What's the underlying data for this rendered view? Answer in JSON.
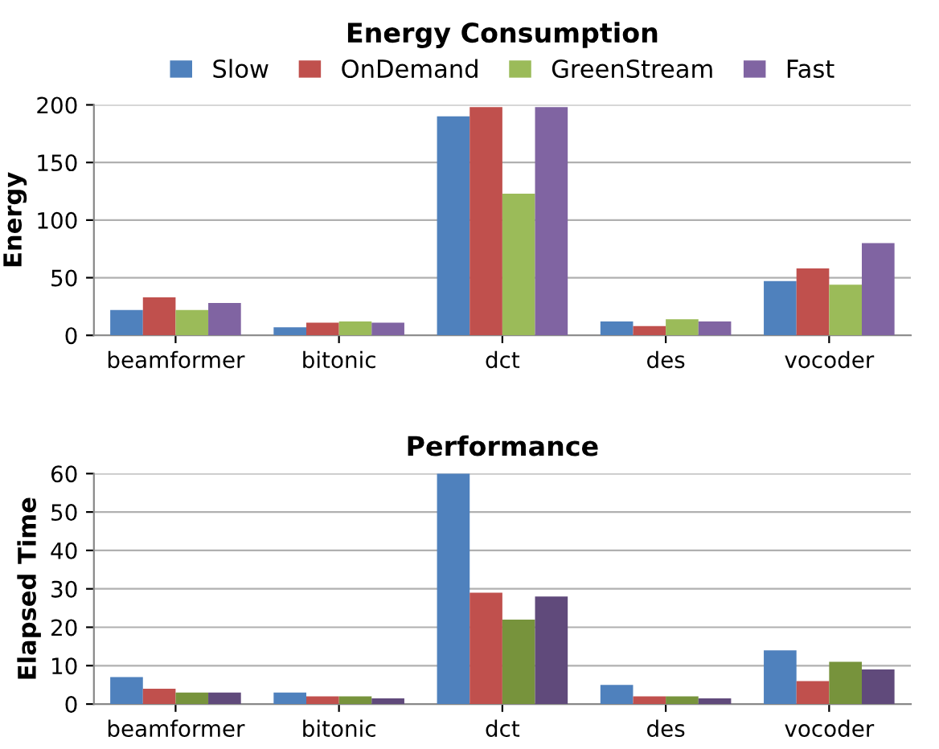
{
  "chart_data": [
    {
      "type": "bar",
      "title": "Energy Consumption",
      "ylabel": "Energy",
      "categories": [
        "beamformer",
        "bitonic",
        "dct",
        "des",
        "vocoder"
      ],
      "ylim": [
        0,
        200
      ],
      "yticks": [
        0,
        50,
        100,
        150,
        200
      ],
      "grid": "y",
      "legend": "top",
      "series": [
        {
          "name": "Slow",
          "color": "#4f81bd",
          "values": [
            22,
            7,
            190,
            12,
            47
          ]
        },
        {
          "name": "OnDemand",
          "color": "#c0504d",
          "values": [
            33,
            11,
            198,
            8,
            58
          ]
        },
        {
          "name": "GreenStream",
          "color": "#9bbb59",
          "values": [
            22,
            12,
            123,
            14,
            44
          ]
        },
        {
          "name": "Fast",
          "color": "#8064a2",
          "values": [
            28,
            11,
            198,
            12,
            80
          ]
        }
      ]
    },
    {
      "type": "bar",
      "title": "Performance",
      "ylabel": "Elapsed Time",
      "categories": [
        "beamformer",
        "bitonic",
        "dct",
        "des",
        "vocoder"
      ],
      "ylim": [
        0,
        60
      ],
      "yticks": [
        0,
        10,
        20,
        30,
        40,
        50,
        60
      ],
      "grid": "y",
      "series": [
        {
          "color": "#4f81bd",
          "values": [
            7,
            3,
            60,
            5,
            14
          ]
        },
        {
          "color": "#c0504d",
          "values": [
            4,
            2,
            29,
            2,
            6
          ]
        },
        {
          "color": "#77933c",
          "values": [
            3,
            2,
            22,
            2,
            11
          ]
        },
        {
          "color": "#604a7b",
          "values": [
            3,
            1.5,
            28,
            1.5,
            9
          ]
        }
      ]
    }
  ]
}
